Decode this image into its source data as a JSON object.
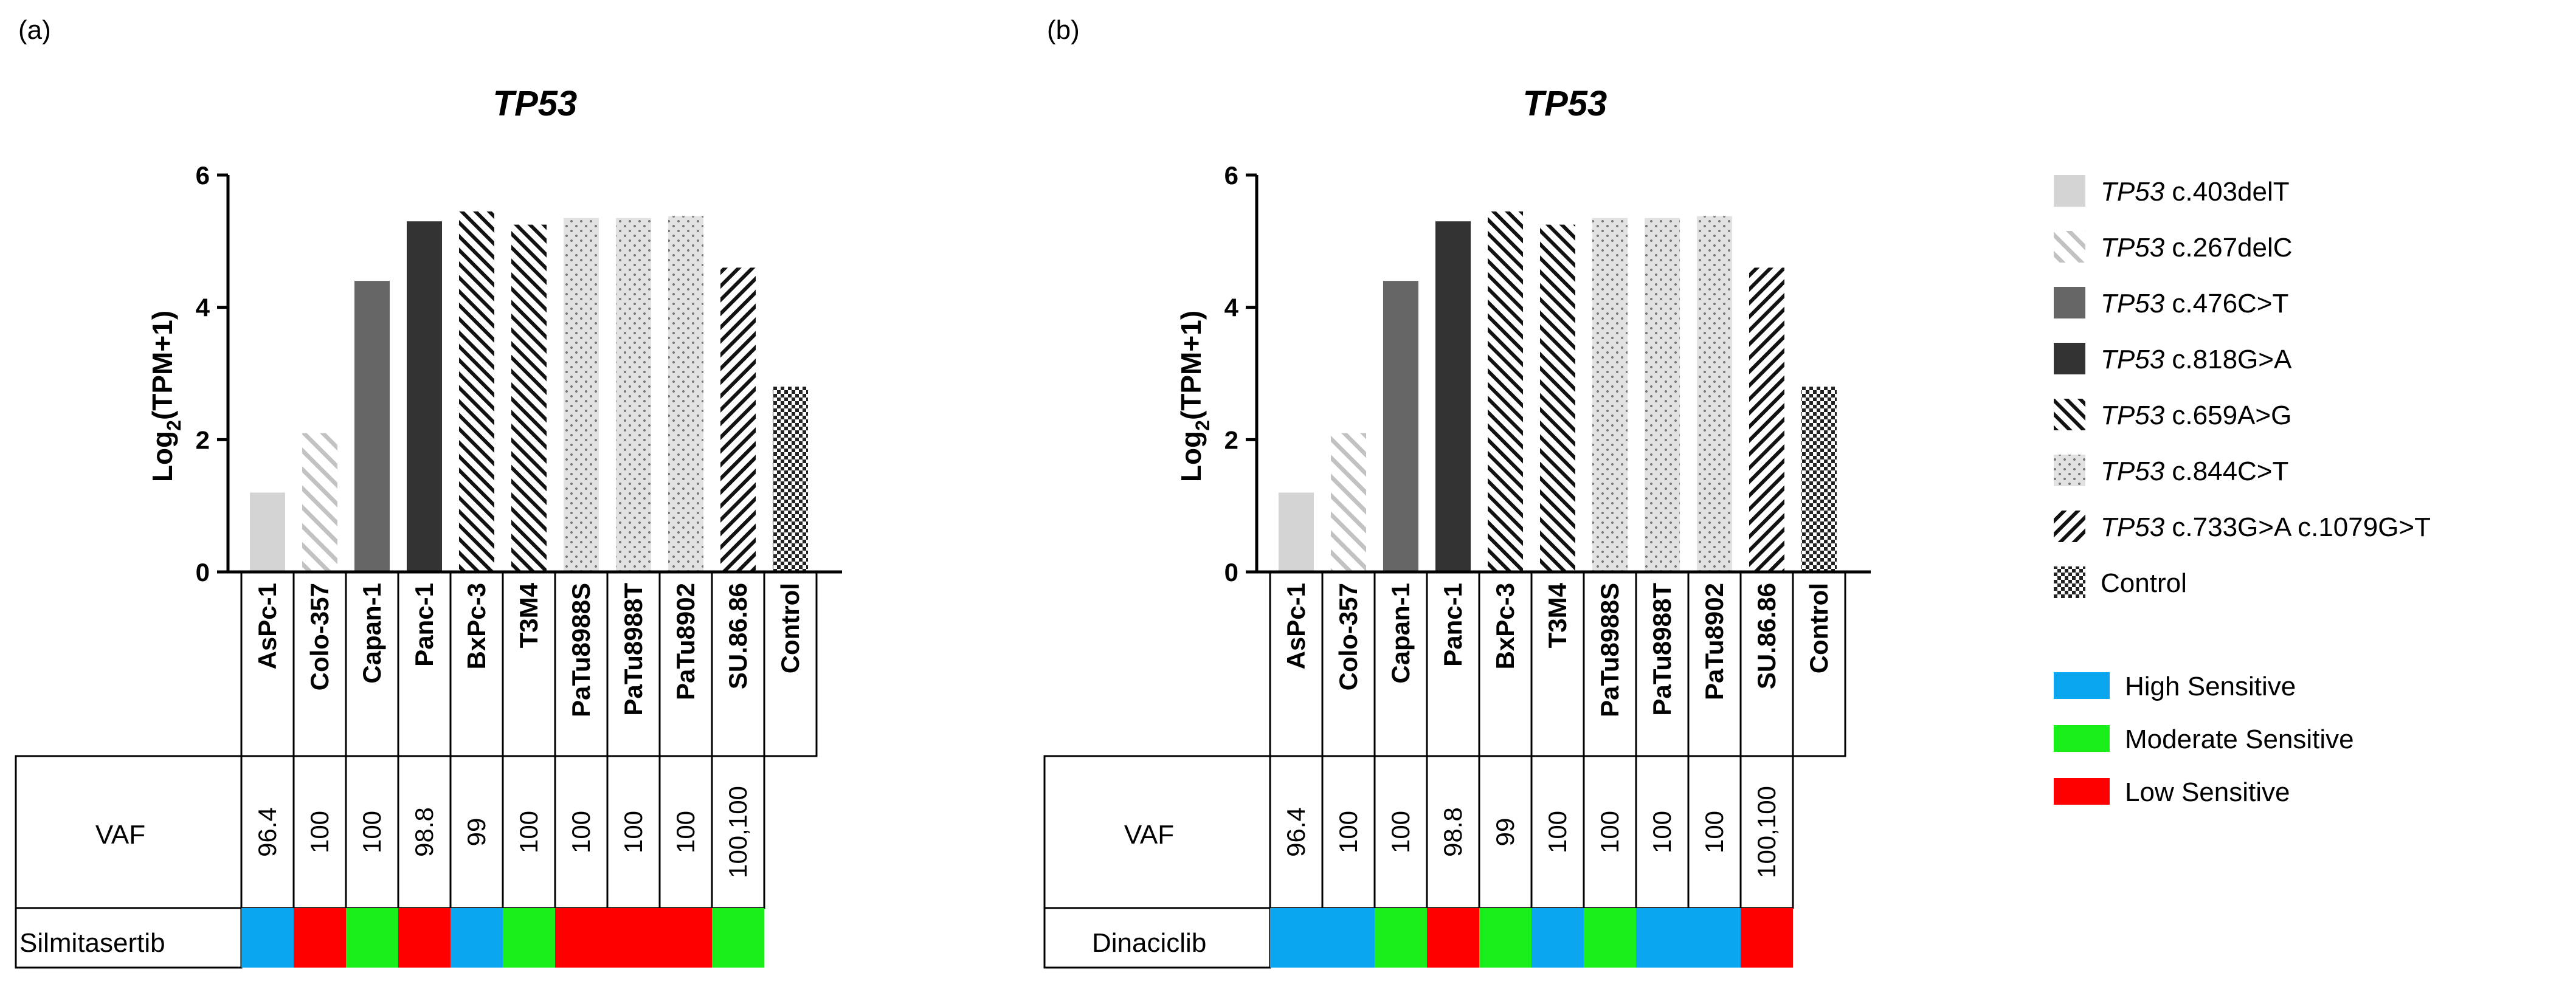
{
  "chart_data": [
    {
      "type": "bar",
      "panel_label": "(a)",
      "title": "TP53",
      "ylabel_main": "Log",
      "ylabel_sub": "2",
      "ylabel_rest": "(TPM+1)",
      "ylim": [
        0,
        6
      ],
      "yticks": [
        "0",
        "2",
        "4",
        "6"
      ],
      "categories": [
        "AsPc-1",
        "Colo-357",
        "Capan-1",
        "Panc-1",
        "BxPc-3",
        "T3M4",
        "PaTu8988S",
        "PaTu8988T",
        "PaTu8902",
        "SU.86.86",
        "Control"
      ],
      "values": [
        1.2,
        2.1,
        4.4,
        5.3,
        5.45,
        5.25,
        5.35,
        5.35,
        5.38,
        4.6,
        2.8
      ],
      "mutation_index": [
        0,
        1,
        2,
        3,
        4,
        4,
        5,
        5,
        5,
        6,
        7
      ],
      "vaf_label": "VAF",
      "vaf": [
        "96.4",
        "100",
        "100",
        "98.8",
        "99",
        "100",
        "100",
        "100",
        "100",
        "100,100"
      ],
      "drug": "Silmitasertib",
      "sensitivity": [
        "high",
        "low",
        "moderate",
        "low",
        "high",
        "moderate",
        "low",
        "low",
        "low",
        "moderate"
      ]
    },
    {
      "type": "bar",
      "panel_label": "(b)",
      "title": "TP53",
      "ylabel_main": "Log",
      "ylabel_sub": "2",
      "ylabel_rest": "(TPM+1)",
      "ylim": [
        0,
        6
      ],
      "yticks": [
        "0",
        "2",
        "4",
        "6"
      ],
      "categories": [
        "AsPc-1",
        "Colo-357",
        "Capan-1",
        "Panc-1",
        "BxPc-3",
        "T3M4",
        "PaTu8988S",
        "PaTu8988T",
        "PaTu8902",
        "SU.86.86",
        "Control"
      ],
      "values": [
        1.2,
        2.1,
        4.4,
        5.3,
        5.45,
        5.25,
        5.35,
        5.35,
        5.38,
        4.6,
        2.8
      ],
      "mutation_index": [
        0,
        1,
        2,
        3,
        4,
        4,
        5,
        5,
        5,
        6,
        7
      ],
      "vaf_label": "VAF",
      "vaf": [
        "96.4",
        "100",
        "100",
        "98.8",
        "99",
        "100",
        "100",
        "100",
        "100",
        "100,100"
      ],
      "drug": "Dinaciclib",
      "sensitivity": [
        "high",
        "high",
        "moderate",
        "low",
        "moderate",
        "high",
        "moderate",
        "high",
        "high",
        "low"
      ]
    }
  ],
  "legend": {
    "mutations": [
      {
        "gene": "TP53",
        "label": "c.403delT",
        "fill": "#d4d4d4",
        "pattern": "solid"
      },
      {
        "gene": "TP53",
        "label": "c.267delC",
        "fill": "#ffffff",
        "pattern": "light-diagonal"
      },
      {
        "gene": "TP53",
        "label": "c.476C>T",
        "fill": "#666666",
        "pattern": "solid"
      },
      {
        "gene": "TP53",
        "label": "c.818G>A",
        "fill": "#333333",
        "pattern": "solid"
      },
      {
        "gene": "TP53",
        "label": "c.659A>G",
        "fill": "#ffffff",
        "pattern": "dense-diagonal"
      },
      {
        "gene": "TP53",
        "label": "c.844C>T",
        "fill": "#e0e0e0",
        "pattern": "dots"
      },
      {
        "gene": "TP53",
        "label": "c.733G>A c.1079G>T",
        "fill": "#ffffff",
        "pattern": "back-diagonal"
      },
      {
        "gene": "",
        "label": "Control",
        "fill": "#333333",
        "pattern": "checker"
      }
    ],
    "sensitivity": [
      {
        "key": "high",
        "label": "High Sensitive",
        "color": "#0aa6f0"
      },
      {
        "key": "moderate",
        "label": "Moderate Sensitive",
        "color": "#1aee1a"
      },
      {
        "key": "low",
        "label": "Low Sensitive",
        "color": "#ff0000"
      }
    ]
  }
}
